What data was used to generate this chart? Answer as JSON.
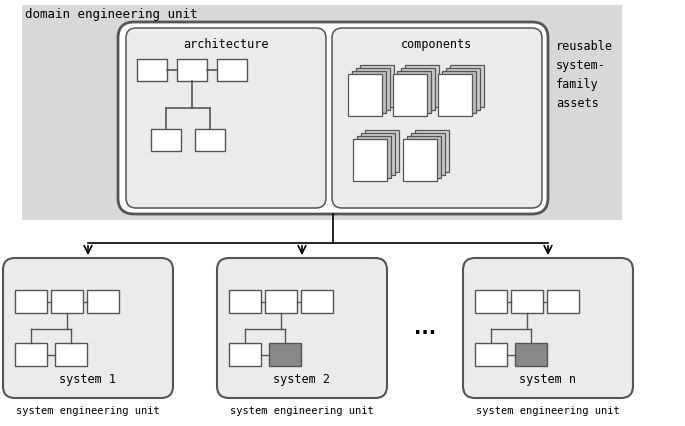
{
  "bg_color": "#d8d8d8",
  "white": "#ffffff",
  "dark_gray": "#888888",
  "light_gray": "#ebebeb",
  "box_edge": "#555555",
  "shadow_color": "#aaaaaa",
  "domain_label": "domain engineering unit",
  "arch_label": "architecture",
  "comp_label": "components",
  "reusable_label": "reusable\nsystem-\nfamily\nassets",
  "system1_label": "system 1",
  "system2_label": "system 2",
  "systemn_label": "system n",
  "seu1_label": "system engineering unit",
  "seu2_label": "system engineering unit",
  "seun_label": "system engineering unit",
  "dots": "...",
  "figw": 6.85,
  "figh": 4.26,
  "dpi": 100
}
